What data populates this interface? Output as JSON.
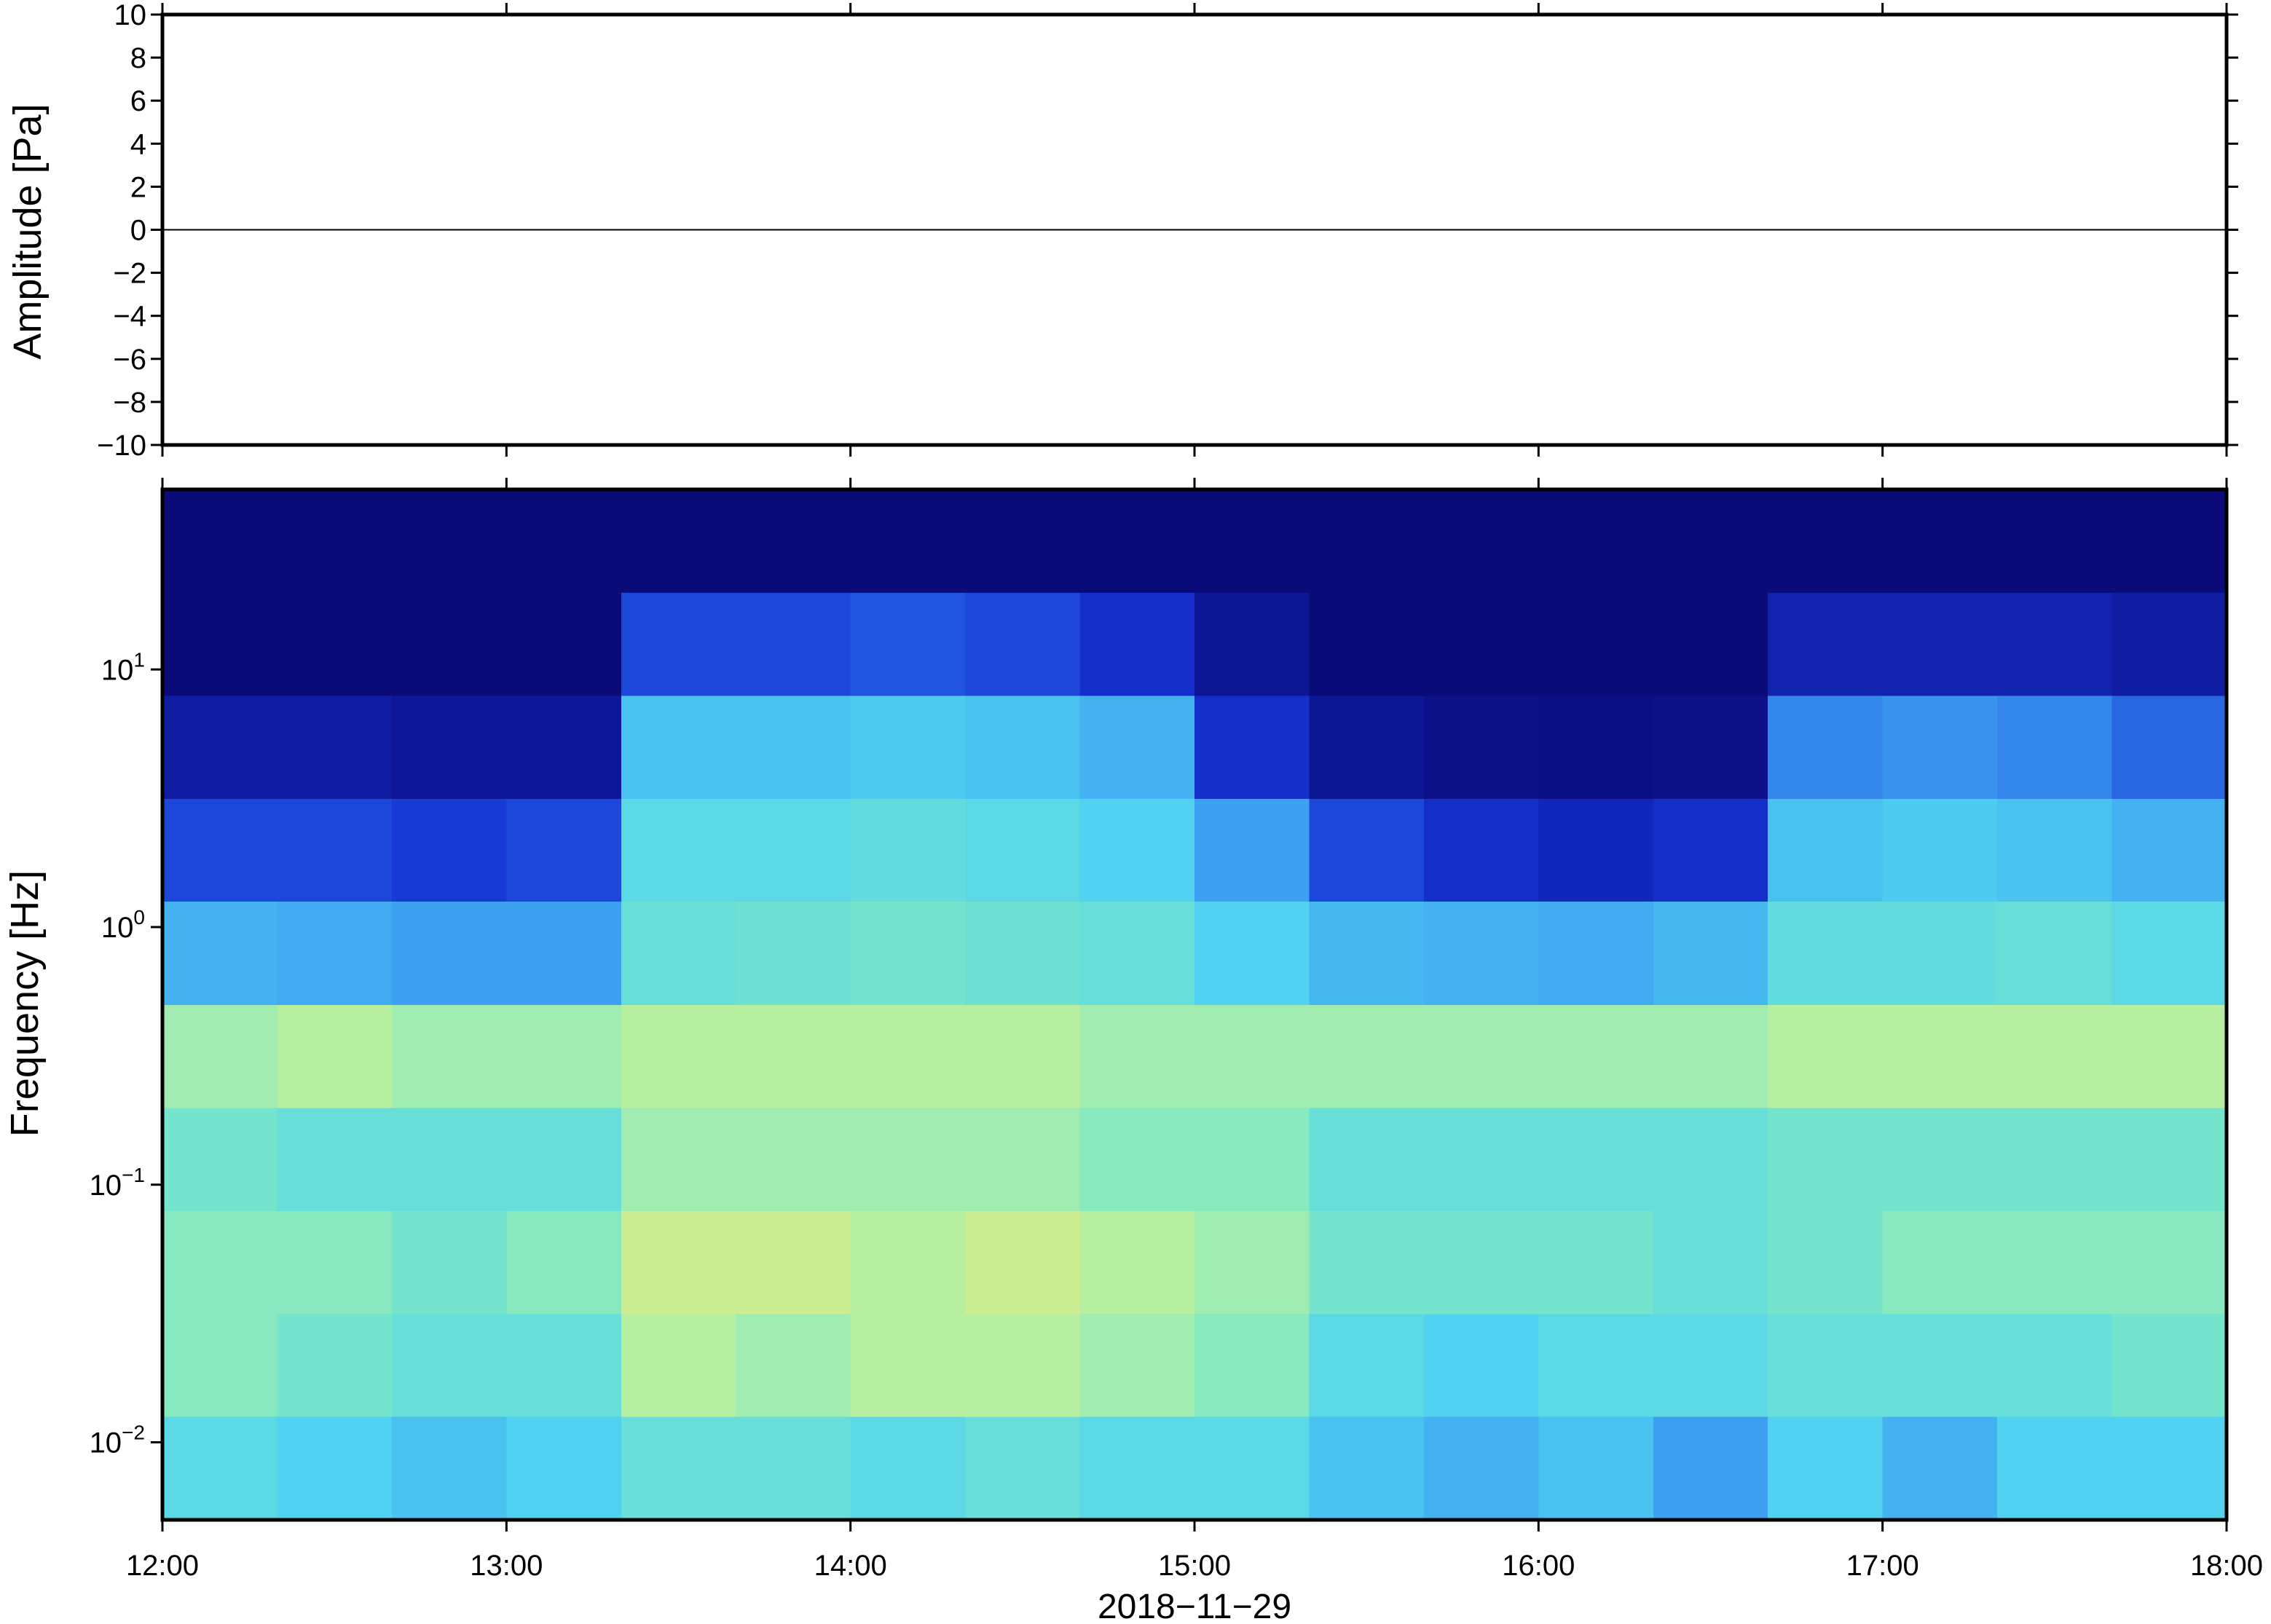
{
  "chart_data": [
    {
      "type": "line",
      "ylabel": "Amplitude [Pa]",
      "x": [
        "12:00",
        "13:00",
        "14:00",
        "15:00",
        "16:00",
        "17:00",
        "18:00"
      ],
      "values": [
        0,
        0,
        0,
        0,
        0,
        0,
        0
      ],
      "color": "#000000",
      "xlim": [
        "12:00",
        "18:00"
      ],
      "xticks": [
        "12:00",
        "13:00",
        "14:00",
        "15:00",
        "16:00",
        "17:00",
        "18:00"
      ],
      "ylim": [
        -10,
        10
      ],
      "yticks": [
        {
          "value": -10,
          "label": "−10"
        },
        {
          "value": -8,
          "label": "−8"
        },
        {
          "value": -6,
          "label": "−6"
        },
        {
          "value": -4,
          "label": "−4"
        },
        {
          "value": -2,
          "label": "−2"
        },
        0,
        2,
        4,
        6,
        8,
        10
      ]
    },
    {
      "type": "spectrogram",
      "ylabel": "Frequency [Hz]",
      "xlabel": "2018−11−29",
      "log_y": true,
      "bins": [
        "12:00",
        "12:20",
        "12:40",
        "13:00",
        "13:20",
        "13:40",
        "14:00",
        "14:20",
        "14:40",
        "15:00",
        "15:20",
        "15:40",
        "16:00",
        "16:20",
        "16:40",
        "17:00",
        "17:20",
        "17:40",
        "18:00"
      ],
      "y_bins": [
        0.005,
        0.0126,
        0.0315,
        0.0792,
        0.199,
        0.5,
        1.26,
        3.15,
        7.92,
        19.9,
        50
      ],
      "z": [
        [
          0.55,
          0.5,
          0.45,
          0.5,
          0.6,
          0.6,
          0.55,
          0.6,
          0.55,
          0.55,
          0.45,
          0.4,
          0.45,
          0.35,
          0.5,
          0.4,
          0.5,
          0.5
        ],
        [
          0.7,
          0.65,
          0.6,
          0.6,
          0.8,
          0.75,
          0.8,
          0.8,
          0.75,
          0.7,
          0.55,
          0.5,
          0.55,
          0.55,
          0.6,
          0.6,
          0.6,
          0.65
        ],
        [
          0.7,
          0.7,
          0.65,
          0.7,
          0.85,
          0.85,
          0.8,
          0.85,
          0.8,
          0.75,
          0.65,
          0.65,
          0.65,
          0.6,
          0.65,
          0.7,
          0.7,
          0.7
        ],
        [
          0.65,
          0.6,
          0.6,
          0.6,
          0.75,
          0.75,
          0.75,
          0.75,
          0.7,
          0.7,
          0.6,
          0.6,
          0.6,
          0.6,
          0.65,
          0.65,
          0.65,
          0.65
        ],
        [
          0.75,
          0.8,
          0.75,
          0.75,
          0.8,
          0.8,
          0.8,
          0.8,
          0.75,
          0.75,
          0.75,
          0.75,
          0.75,
          0.75,
          0.8,
          0.8,
          0.8,
          0.8
        ],
        [
          0.4,
          0.38,
          0.35,
          0.35,
          0.6,
          0.62,
          0.65,
          0.62,
          0.6,
          0.5,
          0.42,
          0.4,
          0.38,
          0.42,
          0.58,
          0.58,
          0.6,
          0.55
        ],
        [
          0.2,
          0.2,
          0.18,
          0.2,
          0.55,
          0.55,
          0.58,
          0.55,
          0.5,
          0.35,
          0.2,
          0.15,
          0.12,
          0.15,
          0.45,
          0.48,
          0.45,
          0.4
        ],
        [
          0.08,
          0.08,
          0.06,
          0.06,
          0.45,
          0.45,
          0.48,
          0.45,
          0.4,
          0.15,
          0.05,
          0.03,
          0.02,
          0.03,
          0.3,
          0.32,
          0.3,
          0.25
        ],
        [
          0,
          0,
          0,
          0,
          0.2,
          0.2,
          0.22,
          0.2,
          0.15,
          0.05,
          0,
          0,
          0,
          0,
          0.1,
          0.1,
          0.1,
          0.08
        ],
        [
          0,
          0,
          0,
          0,
          0,
          0,
          0,
          0,
          0,
          0,
          0,
          0,
          0,
          0,
          0,
          0,
          0,
          0
        ]
      ],
      "zlim": [
        0,
        1
      ],
      "colormap": [
        "#0a0a78",
        "#1432d2",
        "#3c9bf0",
        "#50d2f0",
        "#78e6c8",
        "#c8f096",
        "#f5d264"
      ],
      "xlim": [
        "12:00",
        "18:00"
      ],
      "xticks": [
        "12:00",
        "13:00",
        "14:00",
        "15:00",
        "16:00",
        "17:00",
        "18:00"
      ],
      "ylim": [
        0.005,
        50
      ],
      "yticks": [
        {
          "value": 0.01,
          "label": "10",
          "exponent": "−2"
        },
        {
          "value": 0.1,
          "label": "10",
          "exponent": "−1"
        },
        {
          "value": 1,
          "label": "10",
          "exponent": "0"
        },
        {
          "value": 10,
          "label": "10",
          "exponent": "1"
        }
      ]
    }
  ]
}
